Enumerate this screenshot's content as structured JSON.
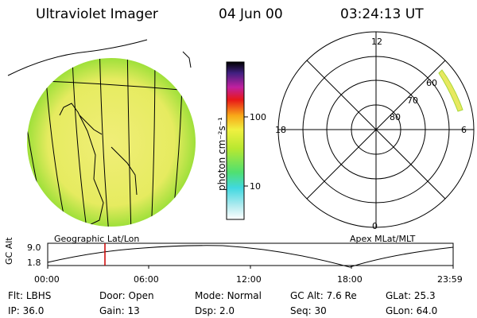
{
  "header": {
    "title": "Ultraviolet Imager",
    "date": "04 Jun 00",
    "time": "03:24:13 UT"
  },
  "colorbar": {
    "label": "photon cm⁻²s⁻¹",
    "ticks": [
      "100",
      "10"
    ]
  },
  "polar": {
    "mlt_labels": {
      "top": "12",
      "left": "18",
      "right": "6",
      "bottom": "0"
    },
    "lat_labels": [
      "60",
      "70",
      "80"
    ]
  },
  "captions": {
    "left": "Geographic Lat/Lon",
    "right": "Apex MLat/MLT"
  },
  "orbit": {
    "ylabel": "GC Alt",
    "y_ticks": [
      "9.0",
      "1.8"
    ],
    "x_ticks": [
      "00:00",
      "06:00",
      "12:00",
      "18:00",
      "23:59"
    ],
    "marker_time": "03:24:13"
  },
  "info": {
    "row1": [
      {
        "label": "Flt:",
        "value": "LBHS"
      },
      {
        "label": "Door:",
        "value": "Open"
      },
      {
        "label": "Mode:",
        "value": "Normal"
      },
      {
        "label": "GC Alt:",
        "value": "7.6 Re"
      },
      {
        "label": "GLat:",
        "value": "25.3"
      }
    ],
    "row2": [
      {
        "label": "IP:",
        "value": "36.0"
      },
      {
        "label": "Gain:",
        "value": "13"
      },
      {
        "label": "Dsp:",
        "value": "2.0"
      },
      {
        "label": "Seq:",
        "value": "30"
      },
      {
        "label": "GLon:",
        "value": "64.0"
      }
    ]
  },
  "colors": {
    "disk_main": "#e9ec6a",
    "disk_edge": "#b7e03a",
    "marker": "#cc0000"
  }
}
